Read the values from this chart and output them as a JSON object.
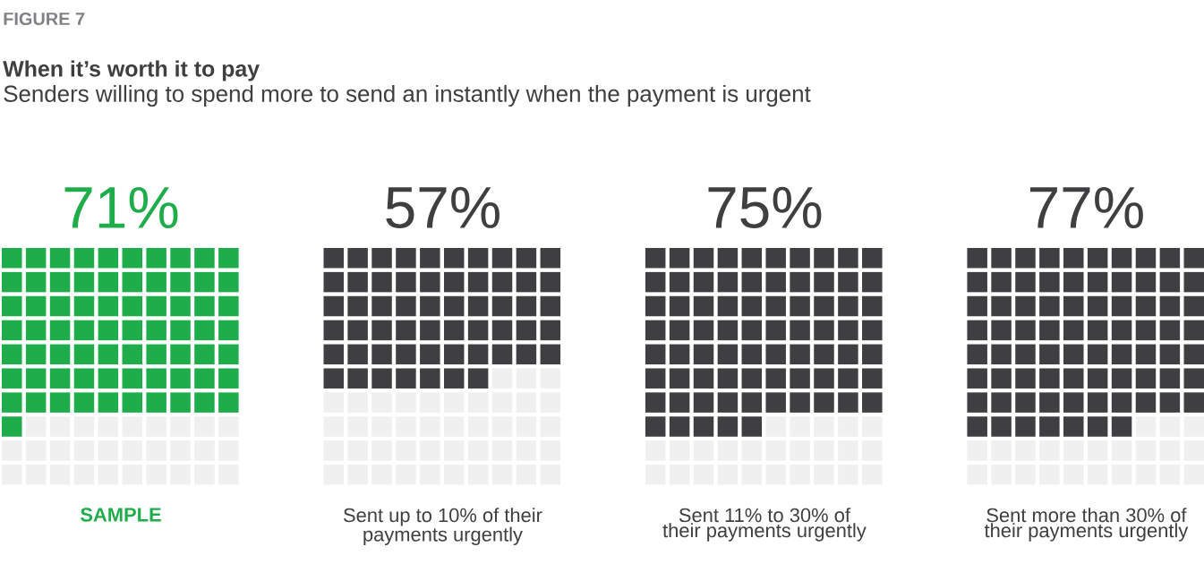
{
  "chart_data": {
    "type": "other",
    "annotations": [
      "FIGURE 7"
    ],
    "title": "When it’s worth it to pay",
    "subtitle": "Senders willing to spend more to send an instantly when the payment is urgent",
    "categories": [
      "SAMPLE",
      "Sent up to 10% of their payments urgently",
      "Sent 11% to 30% of their payments urgently",
      "Sent more than 30% of their payments urgently"
    ],
    "values": [
      71,
      57,
      75,
      77
    ],
    "value_labels": [
      "71%",
      "57%",
      "75%",
      "77%"
    ],
    "colors": [
      "#1fad4b",
      "#3f3f41",
      "#3f3f41",
      "#3f3f41"
    ]
  }
}
